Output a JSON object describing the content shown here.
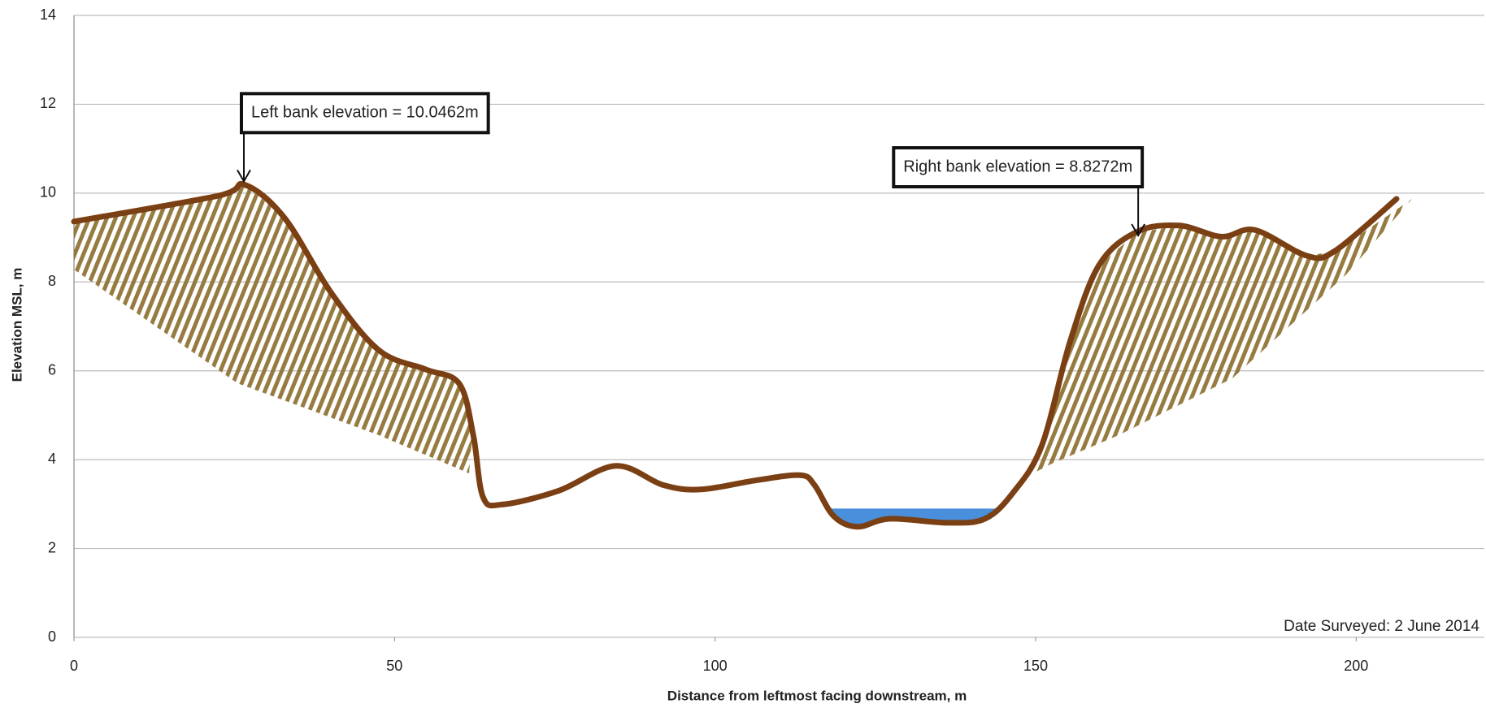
{
  "chart_data": {
    "type": "line",
    "x": [
      0,
      22.5,
      26.6,
      32.8,
      40.2,
      47.6,
      54.9,
      60.1,
      62.3,
      63.8,
      66.8,
      75.6,
      84.5,
      91.9,
      97.8,
      106.6,
      113.3,
      115.5,
      118.5,
      122.2,
      127.3,
      136.2,
      142.1,
      146.5,
      151,
      155.4,
      159.9,
      165.8,
      172.4,
      179,
      184.2,
      192.3,
      196.7,
      206.3
    ],
    "values": [
      9.36,
      9.94,
      10.19,
      9.45,
      7.74,
      6.46,
      6.03,
      5.71,
      4.54,
      3.16,
      2.99,
      3.3,
      3.86,
      3.43,
      3.33,
      3.54,
      3.65,
      3.43,
      2.73,
      2.49,
      2.67,
      2.58,
      2.67,
      3.26,
      4.33,
      6.67,
      8.38,
      9.13,
      9.27,
      9.02,
      9.17,
      8.59,
      8.7,
      9.87
    ],
    "color": "#7b3f14",
    "water_level": 2.9,
    "water_x": [
      118,
      144
    ],
    "water_color": "#4a8fdc",
    "xlim": [
      0,
      220
    ],
    "xticks": [
      0,
      50,
      100,
      150,
      200
    ],
    "ylim": [
      0,
      14
    ],
    "yticks": [
      0,
      2,
      4,
      6,
      8,
      10,
      12,
      14
    ],
    "grid": true,
    "xlabel": "Distance  from leftmost facing  downstream, m",
    "ylabel": "Elevation  MSL, m",
    "annotations": [
      {
        "text": "Left bank elevation = 10.0462m",
        "x": 26.5,
        "y": 10.0462
      },
      {
        "text": "Right bank elevation = 8.8272m",
        "x": 166,
        "y": 8.8272
      }
    ],
    "note": "Date Surveyed: 2 June 2014"
  }
}
